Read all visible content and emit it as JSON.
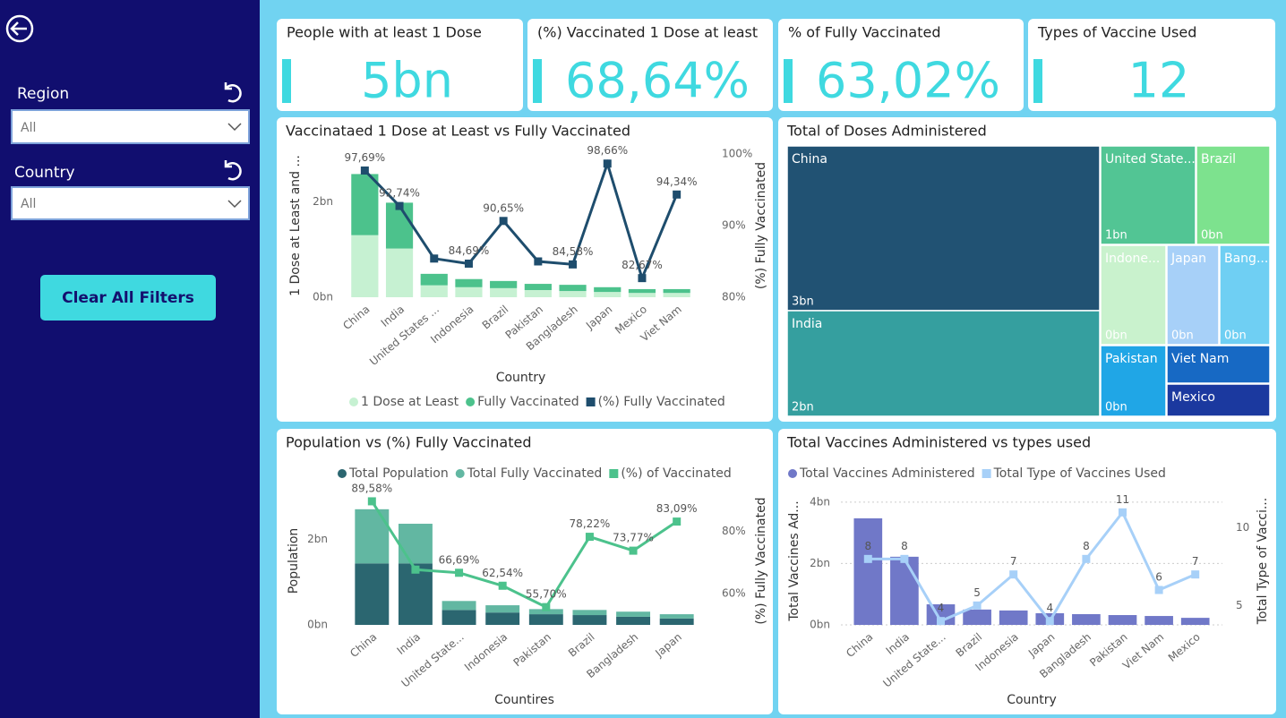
{
  "sidebar": {
    "filters": [
      {
        "label": "Region",
        "value": "All"
      },
      {
        "label": "Country",
        "value": "All"
      }
    ],
    "button": "Clear All Filters"
  },
  "kpis": [
    {
      "title": "People with at least 1 Dose",
      "value": "5bn"
    },
    {
      "title": "(%) Vaccinated 1 Dose at least",
      "value": "68,64%"
    },
    {
      "title": "% of Fully Vaccinated",
      "value": "63,02%"
    },
    {
      "title": "Types of Vaccine Used",
      "value": "12"
    }
  ],
  "chart_data": [
    {
      "type": "bar",
      "title": "Vaccinataed 1 Dose at Least vs Fully Vaccinated",
      "x_label": "Country",
      "y_label": "1 Dose at Least and ...",
      "y2_label": "(%) Fully Vaccinated",
      "categories": [
        "China",
        "India",
        "United States ...",
        "Indonesia",
        "Brazil",
        "Pakistan",
        "Bangladesh",
        "Japan",
        "Mexico",
        "Viet Nam"
      ],
      "series": [
        {
          "name": "1 Dose at Least",
          "color": "#c6f1d2",
          "values": [
            1.3,
            1.02,
            0.25,
            0.21,
            0.19,
            0.15,
            0.13,
            0.11,
            0.09,
            0.09
          ]
        },
        {
          "name": "Fully Vaccinated",
          "color": "#4cc28c",
          "values": [
            1.28,
            0.96,
            0.24,
            0.17,
            0.15,
            0.13,
            0.13,
            0.1,
            0.08,
            0.08
          ]
        },
        {
          "name": "(%) Fully Vaccinated",
          "type": "line",
          "axis": "y2",
          "color": "#1e4d6d",
          "values": [
            97.69,
            92.74,
            85.4,
            84.69,
            90.65,
            85.0,
            84.58,
            98.66,
            82.67,
            94.34
          ],
          "value_labels": [
            "97,69%",
            "92,74%",
            null,
            "84,69%",
            "90,65%",
            null,
            "84,58%",
            "98,66%",
            "82,67%",
            "94,34%"
          ]
        }
      ],
      "stacked": true,
      "ylim": [
        0,
        3
      ],
      "yticks": [
        {
          "value": 0,
          "label": "0bn"
        },
        {
          "value": 2,
          "label": "2bn"
        }
      ],
      "y2lim": [
        80,
        100
      ],
      "y2ticks": [
        {
          "value": 80,
          "label": "80%"
        },
        {
          "value": 90,
          "label": "90%"
        },
        {
          "value": 100,
          "label": "100%"
        }
      ],
      "grid": false,
      "legend": "bottom"
    },
    {
      "type": "treemap",
      "title": "Total of Doses Administered",
      "categories": [
        "China",
        "India",
        "United State...",
        "Brazil",
        "Indone...",
        "Japan",
        "Bang...",
        "Pakistan",
        "Viet Nam",
        "Mexico"
      ],
      "values": [
        3.47,
        2.22,
        0.67,
        0.5,
        0.47,
        0.38,
        0.35,
        0.32,
        0.29,
        0.23
      ],
      "value_labels": [
        "3bn",
        "2bn",
        "1bn",
        "0bn",
        "0bn",
        "0bn",
        "0bn",
        "0bn",
        null,
        null
      ],
      "colors": [
        "#215273",
        "#359f9f",
        "#52c594",
        "#7de28e",
        "#c9f2cd",
        "#a7d0f8",
        "#6fcff3",
        "#20a6e6",
        "#1769c4",
        "#1b399f"
      ]
    },
    {
      "type": "bar",
      "title": "Population vs (%) Fully Vaccinated",
      "x_label": "Countires",
      "y_label": "Population",
      "y2_label": "(%) Fully Vaccinated",
      "categories": [
        "China",
        "India",
        "United State...",
        "Indonesia",
        "Pakistan",
        "Brazil",
        "Bangladesh",
        "Japan"
      ],
      "series": [
        {
          "name": "Total Population",
          "color": "#2b6670",
          "values": [
            1.44,
            1.44,
            0.35,
            0.29,
            0.25,
            0.23,
            0.19,
            0.15
          ]
        },
        {
          "name": "Total Fully Vaccinated",
          "color": "#62b7a2",
          "values": [
            1.27,
            0.93,
            0.21,
            0.17,
            0.12,
            0.12,
            0.12,
            0.1
          ]
        },
        {
          "name": "(%) of Vaccinated",
          "type": "line",
          "axis": "y2",
          "color": "#4cc28c",
          "values": [
            89.58,
            67.7,
            66.69,
            62.54,
            55.7,
            78.22,
            73.77,
            83.09
          ],
          "value_labels": [
            "89,58%",
            null,
            "66,69%",
            "62,54%",
            "55,70%",
            "78,22%",
            "73,77%",
            "83,09%"
          ]
        }
      ],
      "stacked": true,
      "ylim": [
        0,
        3
      ],
      "yticks": [
        {
          "value": 0,
          "label": "0bn"
        },
        {
          "value": 2,
          "label": "2bn"
        }
      ],
      "y2lim": [
        50,
        91
      ],
      "y2ticks": [
        {
          "value": 60,
          "label": "60%"
        },
        {
          "value": 80,
          "label": "80%"
        }
      ],
      "grid": false,
      "legend": "top"
    },
    {
      "type": "bar",
      "title": "Total Vaccines Administered vs types used",
      "x_label": "Country",
      "y_label": "Total Vaccines Ad...",
      "y2_label": "Total Type of Vacci...",
      "categories": [
        "China",
        "India",
        "United State...",
        "Brazil",
        "Indonesia",
        "Japan",
        "Bangladesh",
        "Pakistan",
        "Viet Nam",
        "Mexico"
      ],
      "series": [
        {
          "name": "Total Vaccines Administered",
          "color": "#7078c8",
          "values": [
            3.47,
            2.22,
            0.67,
            0.5,
            0.47,
            0.38,
            0.35,
            0.32,
            0.29,
            0.23
          ]
        },
        {
          "name": "Total Type of Vaccines Used",
          "type": "line",
          "axis": "y2",
          "color": "#a7d0f8",
          "values": [
            8,
            8,
            4,
            5,
            7,
            4,
            8,
            11,
            6,
            7
          ],
          "data_labels": true
        }
      ],
      "stacked": false,
      "ylim": [
        0,
        4.17
      ],
      "yticks": [
        {
          "value": 0,
          "label": "0bn"
        },
        {
          "value": 2,
          "label": "2bn"
        },
        {
          "value": 4,
          "label": "4bn"
        }
      ],
      "y2lim": [
        3.75,
        12
      ],
      "y2ticks": [
        5,
        10
      ],
      "grid": true,
      "legend": "top"
    }
  ]
}
